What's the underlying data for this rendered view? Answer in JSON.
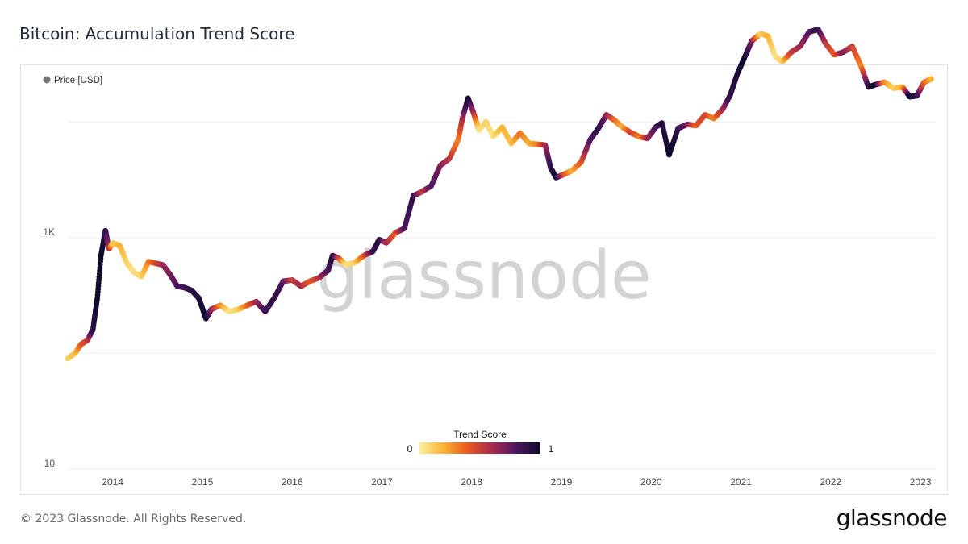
{
  "title": "Bitcoin: Accumulation Trend Score",
  "footer": "© 2023 Glassnode. All Rights Reserved.",
  "logo": "glassnode",
  "watermark": "glassnode",
  "chart_data": {
    "type": "scatter",
    "title": "Bitcoin: Accumulation Trend Score",
    "legend": {
      "label": "Price [USD]",
      "position": "top-left"
    },
    "y_scale": "log",
    "ylim": [
      10,
      20000
    ],
    "y_ticks": [
      {
        "value": 10,
        "label": "10"
      },
      {
        "value": 1000,
        "label": "1K"
      }
    ],
    "xlim": [
      2013.5,
      2023.17
    ],
    "x_ticks": [
      2014,
      2015,
      2016,
      2017,
      2018,
      2019,
      2020,
      2021,
      2022,
      2023
    ],
    "x_tick_labels": [
      "2014",
      "2015",
      "2016",
      "2017",
      "2018",
      "2019",
      "2020",
      "2021",
      "2022",
      "2023"
    ],
    "colorbar": {
      "title": "Trend Score",
      "min_label": "0",
      "max_label": "1",
      "colors": [
        "#fcf29a",
        "#f9b233",
        "#e8581f",
        "#a62a4f",
        "#4f1660",
        "#0d0a2b"
      ]
    },
    "price_series": [
      {
        "t": 2013.5,
        "p": 90,
        "s": 0.1
      },
      {
        "t": 2013.58,
        "p": 100,
        "s": 0.15
      },
      {
        "t": 2013.65,
        "p": 120,
        "s": 0.4
      },
      {
        "t": 2013.72,
        "p": 130,
        "s": 0.5
      },
      {
        "t": 2013.78,
        "p": 160,
        "s": 0.9
      },
      {
        "t": 2013.83,
        "p": 300,
        "s": 1.0
      },
      {
        "t": 2013.87,
        "p": 700,
        "s": 1.0
      },
      {
        "t": 2013.92,
        "p": 1150,
        "s": 0.9
      },
      {
        "t": 2013.96,
        "p": 800,
        "s": 0.6
      },
      {
        "t": 2014.0,
        "p": 900,
        "s": 0.1
      },
      {
        "t": 2014.08,
        "p": 850,
        "s": 0.2
      },
      {
        "t": 2014.16,
        "p": 600,
        "s": 0.1
      },
      {
        "t": 2014.24,
        "p": 500,
        "s": 0.05
      },
      {
        "t": 2014.32,
        "p": 460,
        "s": 0.1
      },
      {
        "t": 2014.4,
        "p": 620,
        "s": 0.3
      },
      {
        "t": 2014.48,
        "p": 600,
        "s": 0.45
      },
      {
        "t": 2014.56,
        "p": 580,
        "s": 0.6
      },
      {
        "t": 2014.64,
        "p": 480,
        "s": 0.7
      },
      {
        "t": 2014.72,
        "p": 380,
        "s": 0.8
      },
      {
        "t": 2014.8,
        "p": 370,
        "s": 0.85
      },
      {
        "t": 2014.88,
        "p": 350,
        "s": 0.9
      },
      {
        "t": 2014.96,
        "p": 300,
        "s": 0.95
      },
      {
        "t": 2015.04,
        "p": 200,
        "s": 1.0
      },
      {
        "t": 2015.1,
        "p": 240,
        "s": 0.7
      },
      {
        "t": 2015.2,
        "p": 260,
        "s": 0.3
      },
      {
        "t": 2015.3,
        "p": 230,
        "s": 0.05
      },
      {
        "t": 2015.4,
        "p": 240,
        "s": 0.1
      },
      {
        "t": 2015.5,
        "p": 260,
        "s": 0.35
      },
      {
        "t": 2015.6,
        "p": 280,
        "s": 0.6
      },
      {
        "t": 2015.7,
        "p": 230,
        "s": 0.85
      },
      {
        "t": 2015.8,
        "p": 300,
        "s": 0.9
      },
      {
        "t": 2015.9,
        "p": 420,
        "s": 0.8
      },
      {
        "t": 2016.0,
        "p": 430,
        "s": 0.5
      },
      {
        "t": 2016.1,
        "p": 380,
        "s": 0.6
      },
      {
        "t": 2016.2,
        "p": 420,
        "s": 0.4
      },
      {
        "t": 2016.3,
        "p": 450,
        "s": 0.55
      },
      {
        "t": 2016.4,
        "p": 520,
        "s": 0.8
      },
      {
        "t": 2016.45,
        "p": 700,
        "s": 0.95
      },
      {
        "t": 2016.52,
        "p": 660,
        "s": 0.5
      },
      {
        "t": 2016.6,
        "p": 580,
        "s": 0.05
      },
      {
        "t": 2016.7,
        "p": 610,
        "s": 0.1
      },
      {
        "t": 2016.8,
        "p": 700,
        "s": 0.4
      },
      {
        "t": 2016.9,
        "p": 760,
        "s": 0.85
      },
      {
        "t": 2016.97,
        "p": 960,
        "s": 0.95
      },
      {
        "t": 2017.05,
        "p": 900,
        "s": 0.6
      },
      {
        "t": 2017.15,
        "p": 1100,
        "s": 0.4
      },
      {
        "t": 2017.25,
        "p": 1200,
        "s": 0.8
      },
      {
        "t": 2017.35,
        "p": 2300,
        "s": 0.9
      },
      {
        "t": 2017.45,
        "p": 2500,
        "s": 0.5
      },
      {
        "t": 2017.55,
        "p": 2800,
        "s": 0.8
      },
      {
        "t": 2017.65,
        "p": 4200,
        "s": 0.7
      },
      {
        "t": 2017.75,
        "p": 4800,
        "s": 0.55
      },
      {
        "t": 2017.85,
        "p": 7000,
        "s": 0.3
      },
      {
        "t": 2017.9,
        "p": 11000,
        "s": 0.6
      },
      {
        "t": 2017.96,
        "p": 16000,
        "s": 1.0
      },
      {
        "t": 2018.02,
        "p": 12000,
        "s": 0.6
      },
      {
        "t": 2018.08,
        "p": 8500,
        "s": 0.05
      },
      {
        "t": 2018.16,
        "p": 10000,
        "s": 0.1
      },
      {
        "t": 2018.24,
        "p": 7500,
        "s": 0.05
      },
      {
        "t": 2018.34,
        "p": 9000,
        "s": 0.2
      },
      {
        "t": 2018.44,
        "p": 6500,
        "s": 0.15
      },
      {
        "t": 2018.54,
        "p": 8000,
        "s": 0.35
      },
      {
        "t": 2018.64,
        "p": 6500,
        "s": 0.2
      },
      {
        "t": 2018.74,
        "p": 6400,
        "s": 0.3
      },
      {
        "t": 2018.82,
        "p": 6300,
        "s": 0.6
      },
      {
        "t": 2018.88,
        "p": 4000,
        "s": 0.9
      },
      {
        "t": 2018.94,
        "p": 3300,
        "s": 1.0
      },
      {
        "t": 2019.02,
        "p": 3500,
        "s": 0.5
      },
      {
        "t": 2019.12,
        "p": 3800,
        "s": 0.2
      },
      {
        "t": 2019.22,
        "p": 4500,
        "s": 0.4
      },
      {
        "t": 2019.32,
        "p": 7000,
        "s": 0.8
      },
      {
        "t": 2019.42,
        "p": 9000,
        "s": 0.9
      },
      {
        "t": 2019.5,
        "p": 11500,
        "s": 0.7
      },
      {
        "t": 2019.58,
        "p": 10500,
        "s": 0.4
      },
      {
        "t": 2019.68,
        "p": 9000,
        "s": 0.2
      },
      {
        "t": 2019.78,
        "p": 8000,
        "s": 0.5
      },
      {
        "t": 2019.88,
        "p": 7400,
        "s": 0.3
      },
      {
        "t": 2019.96,
        "p": 7200,
        "s": 0.6
      },
      {
        "t": 2020.05,
        "p": 9000,
        "s": 0.8
      },
      {
        "t": 2020.12,
        "p": 9800,
        "s": 0.9
      },
      {
        "t": 2020.2,
        "p": 5200,
        "s": 1.0
      },
      {
        "t": 2020.3,
        "p": 8800,
        "s": 0.9
      },
      {
        "t": 2020.4,
        "p": 9500,
        "s": 0.7
      },
      {
        "t": 2020.5,
        "p": 9300,
        "s": 0.4
      },
      {
        "t": 2020.6,
        "p": 11500,
        "s": 0.5
      },
      {
        "t": 2020.7,
        "p": 10700,
        "s": 0.3
      },
      {
        "t": 2020.8,
        "p": 13000,
        "s": 0.6
      },
      {
        "t": 2020.88,
        "p": 17000,
        "s": 0.9
      },
      {
        "t": 2020.96,
        "p": 26000,
        "s": 0.95
      },
      {
        "t": 2021.04,
        "p": 36000,
        "s": 1.0
      },
      {
        "t": 2021.12,
        "p": 50000,
        "s": 0.7
      },
      {
        "t": 2021.22,
        "p": 58000,
        "s": 0.1
      },
      {
        "t": 2021.3,
        "p": 55000,
        "s": 0.2
      },
      {
        "t": 2021.38,
        "p": 37000,
        "s": 0.05
      },
      {
        "t": 2021.46,
        "p": 33000,
        "s": 0.1
      },
      {
        "t": 2021.56,
        "p": 40000,
        "s": 0.5
      },
      {
        "t": 2021.66,
        "p": 45000,
        "s": 0.6
      },
      {
        "t": 2021.76,
        "p": 60000,
        "s": 0.8
      },
      {
        "t": 2021.86,
        "p": 63000,
        "s": 0.9
      },
      {
        "t": 2021.94,
        "p": 48000,
        "s": 0.55
      },
      {
        "t": 2022.04,
        "p": 38000,
        "s": 0.4
      },
      {
        "t": 2022.14,
        "p": 40000,
        "s": 0.7
      },
      {
        "t": 2022.24,
        "p": 45000,
        "s": 0.5
      },
      {
        "t": 2022.34,
        "p": 30000,
        "s": 0.3
      },
      {
        "t": 2022.42,
        "p": 20000,
        "s": 0.9
      },
      {
        "t": 2022.5,
        "p": 21000,
        "s": 1.0
      },
      {
        "t": 2022.6,
        "p": 22000,
        "s": 0.3
      },
      {
        "t": 2022.7,
        "p": 19500,
        "s": 0.1
      },
      {
        "t": 2022.8,
        "p": 20000,
        "s": 0.2
      },
      {
        "t": 2022.88,
        "p": 16500,
        "s": 1.0
      },
      {
        "t": 2022.96,
        "p": 16800,
        "s": 0.9
      },
      {
        "t": 2023.04,
        "p": 22000,
        "s": 0.4
      },
      {
        "t": 2023.12,
        "p": 23500,
        "s": 0.2
      }
    ]
  }
}
